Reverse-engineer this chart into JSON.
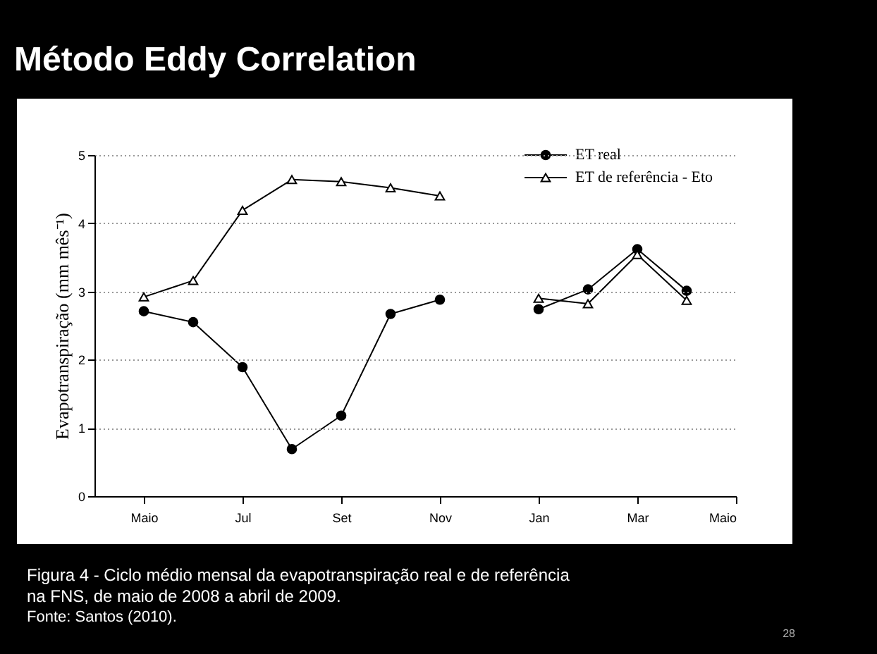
{
  "chart_data": {
    "type": "line",
    "title": "Método Eddy Correlation",
    "ylabel": "Evapotranspiração (mm mês⁻¹)",
    "categories": [
      "Maio",
      null,
      "Jul",
      null,
      "Set",
      null,
      "Nov",
      null,
      "Jan",
      null,
      "Mar",
      null,
      "Maio"
    ],
    "series": [
      {
        "name": "ET real",
        "color": "#000000",
        "marker": "circle",
        "values": [
          2.71,
          2.55,
          1.89,
          0.69,
          1.18,
          2.67,
          2.88,
          null,
          2.74,
          3.03,
          3.62,
          3.01,
          null
        ]
      },
      {
        "name": "ET de referência - Eto",
        "color": "#000000",
        "marker": "triangle",
        "values": [
          2.92,
          3.16,
          4.19,
          4.64,
          4.61,
          4.52,
          4.4,
          null,
          2.9,
          2.82,
          3.54,
          2.87,
          null
        ]
      }
    ],
    "ylim": [
      0,
      5
    ],
    "yticks": [
      0,
      1,
      2,
      3,
      4,
      5
    ],
    "grid": "y",
    "legend": "top right",
    "annotations": [
      "Figura 4 - Ciclo médio mensal da evapotranspiração real  e de referência  na FNS, de maio de 2008 a abril de 2009.",
      "Fonte: Santos (2010).",
      "28"
    ]
  }
}
